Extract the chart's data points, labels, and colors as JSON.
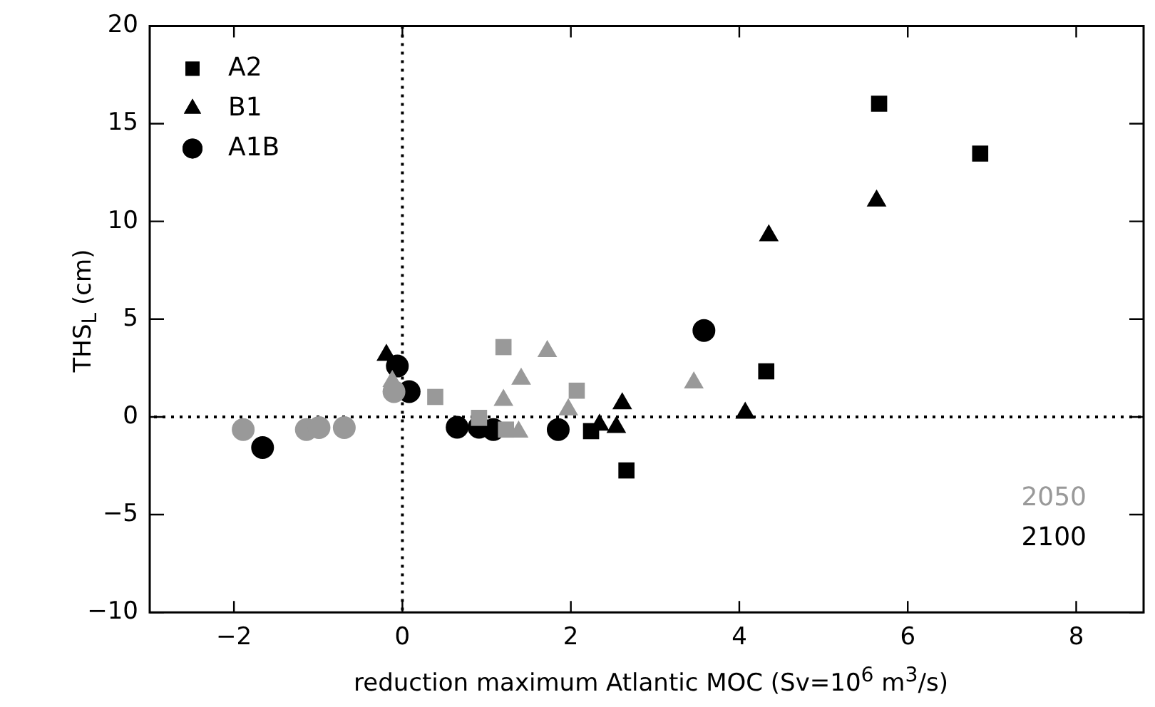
{
  "chart_data": {
    "type": "scatter",
    "xlabel": "reduction maximum Atlantic MOC (Sv=10$^{6}$ m$^{3}$/s)",
    "ylabel": "THS$_{L}$ (cm)",
    "xlim": [
      -3,
      8.8
    ],
    "xticks": [
      -2,
      0,
      2,
      4,
      6,
      8
    ],
    "ylim": [
      -10,
      20
    ],
    "yticks": [
      -10,
      -5,
      0,
      5,
      10,
      15,
      20
    ],
    "grid": false,
    "legend": "top left",
    "ref_lines": [
      {
        "axis": "x",
        "value": 0,
        "line_style": "dotted",
        "color": "#000000"
      },
      {
        "axis": "y",
        "value": 0,
        "line_style": "dotted",
        "color": "#000000"
      }
    ],
    "annotations": [
      "2050",
      "2100"
    ],
    "series": [
      {
        "marker": "square",
        "color": "#999999",
        "x": [
          1.2,
          0.39,
          0.91,
          1.23,
          2.07
        ],
        "values": [
          3.57,
          1.02,
          -0.05,
          -0.65,
          1.34
        ]
      },
      {
        "marker": "triangle",
        "color": "#999999",
        "x": [
          -0.12,
          1.72,
          1.41,
          1.2,
          1.38,
          1.97,
          3.46
        ],
        "values": [
          1.82,
          3.35,
          1.94,
          0.85,
          -0.77,
          0.37,
          1.75
        ]
      },
      {
        "marker": "circle",
        "color": "#999999",
        "x": [
          -1.89,
          -1.14,
          -0.99,
          -0.69,
          -0.1
        ],
        "values": [
          -0.65,
          -0.65,
          -0.55,
          -0.55,
          1.29
        ]
      },
      {
        "name": "A2",
        "marker": "square",
        "color": "#000000",
        "x": [
          2.24,
          2.66,
          5.66,
          6.86,
          4.32
        ],
        "values": [
          -0.73,
          -2.74,
          16.02,
          13.47,
          2.33
        ]
      },
      {
        "name": "B1",
        "marker": "triangle",
        "color": "#000000",
        "x": [
          -0.19,
          2.61,
          2.34,
          2.54,
          4.07,
          4.35,
          5.63
        ],
        "values": [
          3.16,
          0.68,
          -0.41,
          -0.53,
          0.2,
          9.28,
          11.05
        ]
      },
      {
        "name": "A1B",
        "marker": "circle",
        "color": "#000000",
        "x": [
          -1.66,
          -0.06,
          0.08,
          0.65,
          0.91,
          1.08,
          1.85,
          3.58
        ],
        "values": [
          -1.57,
          2.6,
          1.29,
          -0.53,
          -0.53,
          -0.65,
          -0.65,
          4.42
        ]
      }
    ]
  }
}
